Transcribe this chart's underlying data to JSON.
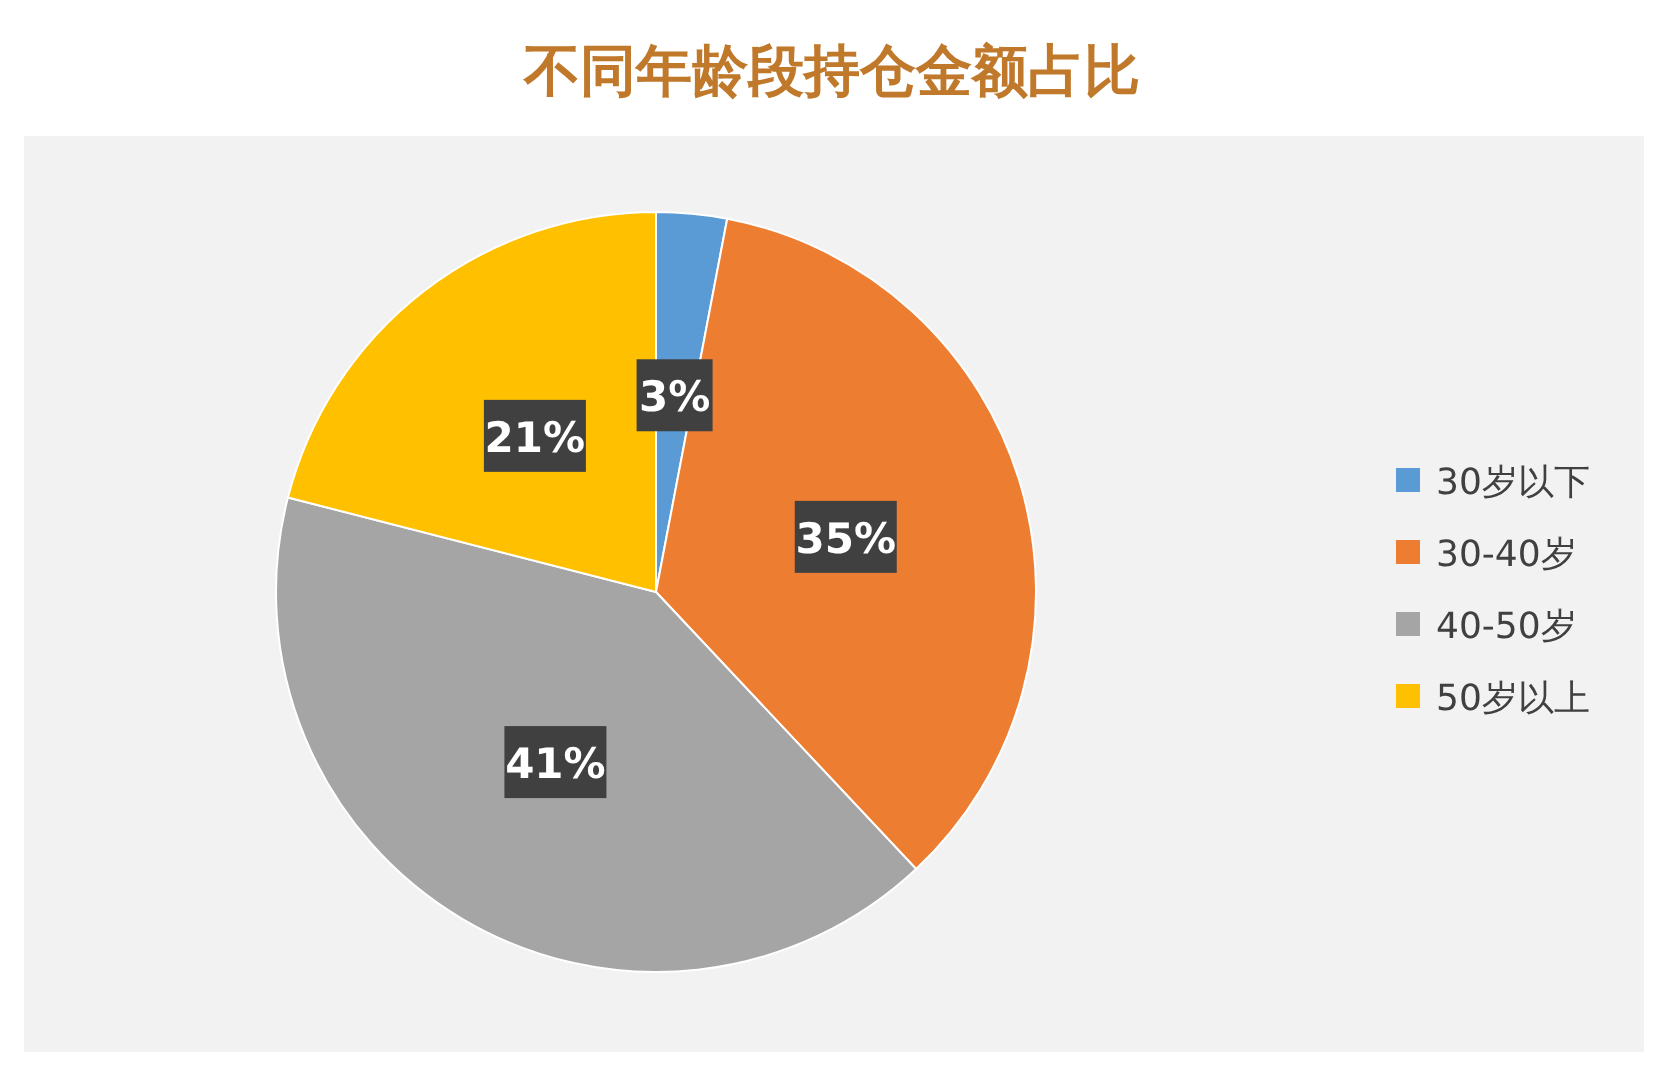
{
  "chart_data": {
    "type": "pie",
    "title": "不同年龄段持仓金额占比",
    "categories": [
      "30岁以下",
      "30-40岁",
      "40-50岁",
      "50岁以上"
    ],
    "values": [
      3,
      35,
      41,
      21
    ],
    "colors": [
      "#5b9bd5",
      "#ed7d31",
      "#a5a5a5",
      "#ffc000"
    ],
    "value_labels": [
      "3%",
      "35%",
      "41%",
      "21%"
    ],
    "legend": "right"
  }
}
